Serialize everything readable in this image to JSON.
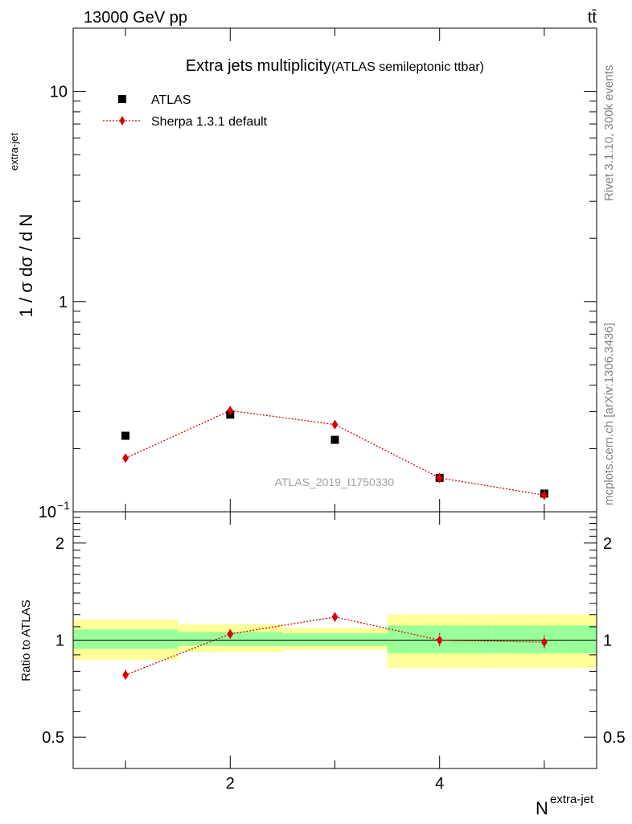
{
  "header": {
    "energy_label": "13000 GeV pp",
    "process_label": "tt̄"
  },
  "side_text": {
    "rivet": "Rivet 3.1.10,  300k events",
    "mcplots": "mcplots.cern.ch [arXiv:1306.3436]"
  },
  "chart_data": [
    {
      "type": "scatter",
      "title": "Extra jets multiplicity",
      "subtitle": "(ATLAS semileptonic ttbar)",
      "watermark": "ATLAS_2019_I1750330",
      "ylabel": "1 / σ dσ / d N",
      "ylabel_sup": "extra-jet",
      "yscale": "log",
      "ylim": [
        0.1,
        20
      ],
      "xlim": [
        0.5,
        5.5
      ],
      "y_tick_labels": [
        "10",
        "1",
        "10"
      ],
      "y_tick_label_sup": "−1",
      "legend_position": "top-left",
      "x": [
        1,
        2,
        3,
        4,
        5
      ],
      "series": [
        {
          "name": "ATLAS",
          "color": "#000000",
          "marker": "square",
          "values": [
            0.23,
            0.29,
            0.22,
            0.145,
            0.122
          ]
        },
        {
          "name": "Sherpa 1.3.1 default",
          "color": "#dd0000",
          "marker": "diamond",
          "line": "dotted",
          "values": [
            0.18,
            0.303,
            0.26,
            0.145,
            0.12
          ],
          "errors": [
            0.008,
            0.01,
            0.009,
            0.008,
            0.007
          ]
        }
      ]
    },
    {
      "type": "scatter",
      "ylabel": "Ratio to ATLAS",
      "yscale": "log",
      "ylim": [
        0.4,
        2.5
      ],
      "xlim": [
        0.5,
        5.5
      ],
      "xlabel": "N",
      "xlabel_sup": "extra-jet",
      "x_tick_labels": [
        "2",
        "4"
      ],
      "y_tick_labels": [
        "2",
        "1",
        "0.5"
      ],
      "bands": {
        "bins": [
          [
            0.5,
            1.5
          ],
          [
            1.5,
            2.5
          ],
          [
            2.5,
            3.5
          ],
          [
            3.5,
            4.5
          ],
          [
            4.5,
            5.5
          ]
        ],
        "inner": [
          [
            0.94,
            1.08
          ],
          [
            0.96,
            1.06
          ],
          [
            0.96,
            1.05
          ],
          [
            0.91,
            1.11
          ],
          [
            0.91,
            1.11
          ]
        ],
        "outer": [
          [
            0.87,
            1.16
          ],
          [
            0.92,
            1.12
          ],
          [
            0.93,
            1.09
          ],
          [
            0.82,
            1.2
          ],
          [
            0.82,
            1.2
          ]
        ],
        "inner_color": "#99ff99",
        "outer_color": "#ffff99"
      },
      "x": [
        1,
        2,
        3,
        4,
        5
      ],
      "series": [
        {
          "name": "Sherpa 1.3.1 default",
          "color": "#dd0000",
          "marker": "diamond",
          "line": "dotted",
          "values": [
            0.78,
            1.045,
            1.18,
            1.0,
            0.985
          ],
          "errors": [
            0.03,
            0.035,
            0.04,
            0.05,
            0.05
          ]
        }
      ]
    }
  ]
}
